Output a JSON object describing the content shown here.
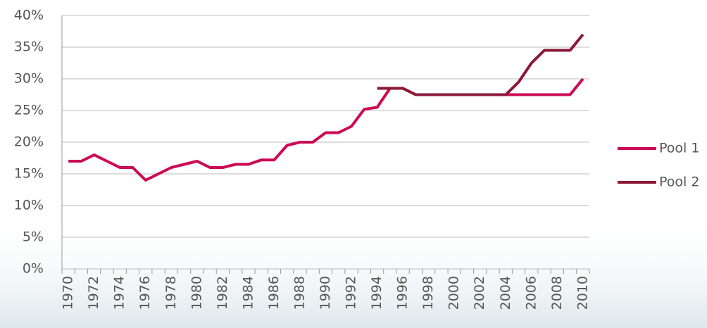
{
  "chart_data": {
    "type": "line",
    "categories": [
      "1970",
      null,
      "1972",
      null,
      "1974",
      null,
      "1976",
      null,
      "1978",
      null,
      "1980",
      null,
      "1982",
      null,
      "1984",
      null,
      "1986",
      null,
      "1988",
      null,
      "1990",
      null,
      "1992",
      null,
      "1994",
      null,
      "1996",
      null,
      "1998",
      null,
      "2000",
      null,
      "2002",
      null,
      "2004",
      null,
      "2006",
      null,
      "2008",
      null,
      "2010"
    ],
    "series": [
      {
        "name": "Pool 1",
        "color": "#cc0a55",
        "values": [
          17,
          17,
          18,
          17,
          16,
          16,
          14,
          15,
          16,
          16.5,
          17,
          16,
          16,
          16.5,
          16.5,
          17.2,
          17.2,
          19.5,
          20,
          20,
          21.5,
          21.5,
          22.5,
          25.2,
          25.5,
          28.5,
          28.5,
          27.5,
          27.5,
          27.5,
          27.5,
          27.5,
          27.5,
          27.5,
          27.5,
          27.5,
          27.5,
          27.5,
          27.5,
          27.5,
          30
        ]
      },
      {
        "name": "Pool 2",
        "color": "#8c1838",
        "values": [
          null,
          null,
          null,
          null,
          null,
          null,
          null,
          null,
          null,
          null,
          null,
          null,
          null,
          null,
          null,
          null,
          null,
          null,
          null,
          null,
          null,
          null,
          null,
          null,
          28.5,
          28.5,
          28.5,
          27.5,
          27.5,
          27.5,
          27.5,
          27.5,
          27.5,
          27.5,
          27.5,
          29.5,
          32.5,
          34.5,
          34.5,
          34.5,
          37
        ]
      }
    ],
    "ylim": [
      0,
      40
    ],
    "yticks": [
      {
        "value": 0,
        "label": "0%"
      },
      {
        "value": 5,
        "label": "5%"
      },
      {
        "value": 10,
        "label": "10%"
      },
      {
        "value": 15,
        "label": "15%"
      },
      {
        "value": 20,
        "label": "20%"
      },
      {
        "value": 25,
        "label": "25%"
      },
      {
        "value": 30,
        "label": "30%"
      },
      {
        "value": 35,
        "label": "35%"
      },
      {
        "value": 40,
        "label": "40%"
      }
    ],
    "grid": true,
    "legend": "right"
  }
}
